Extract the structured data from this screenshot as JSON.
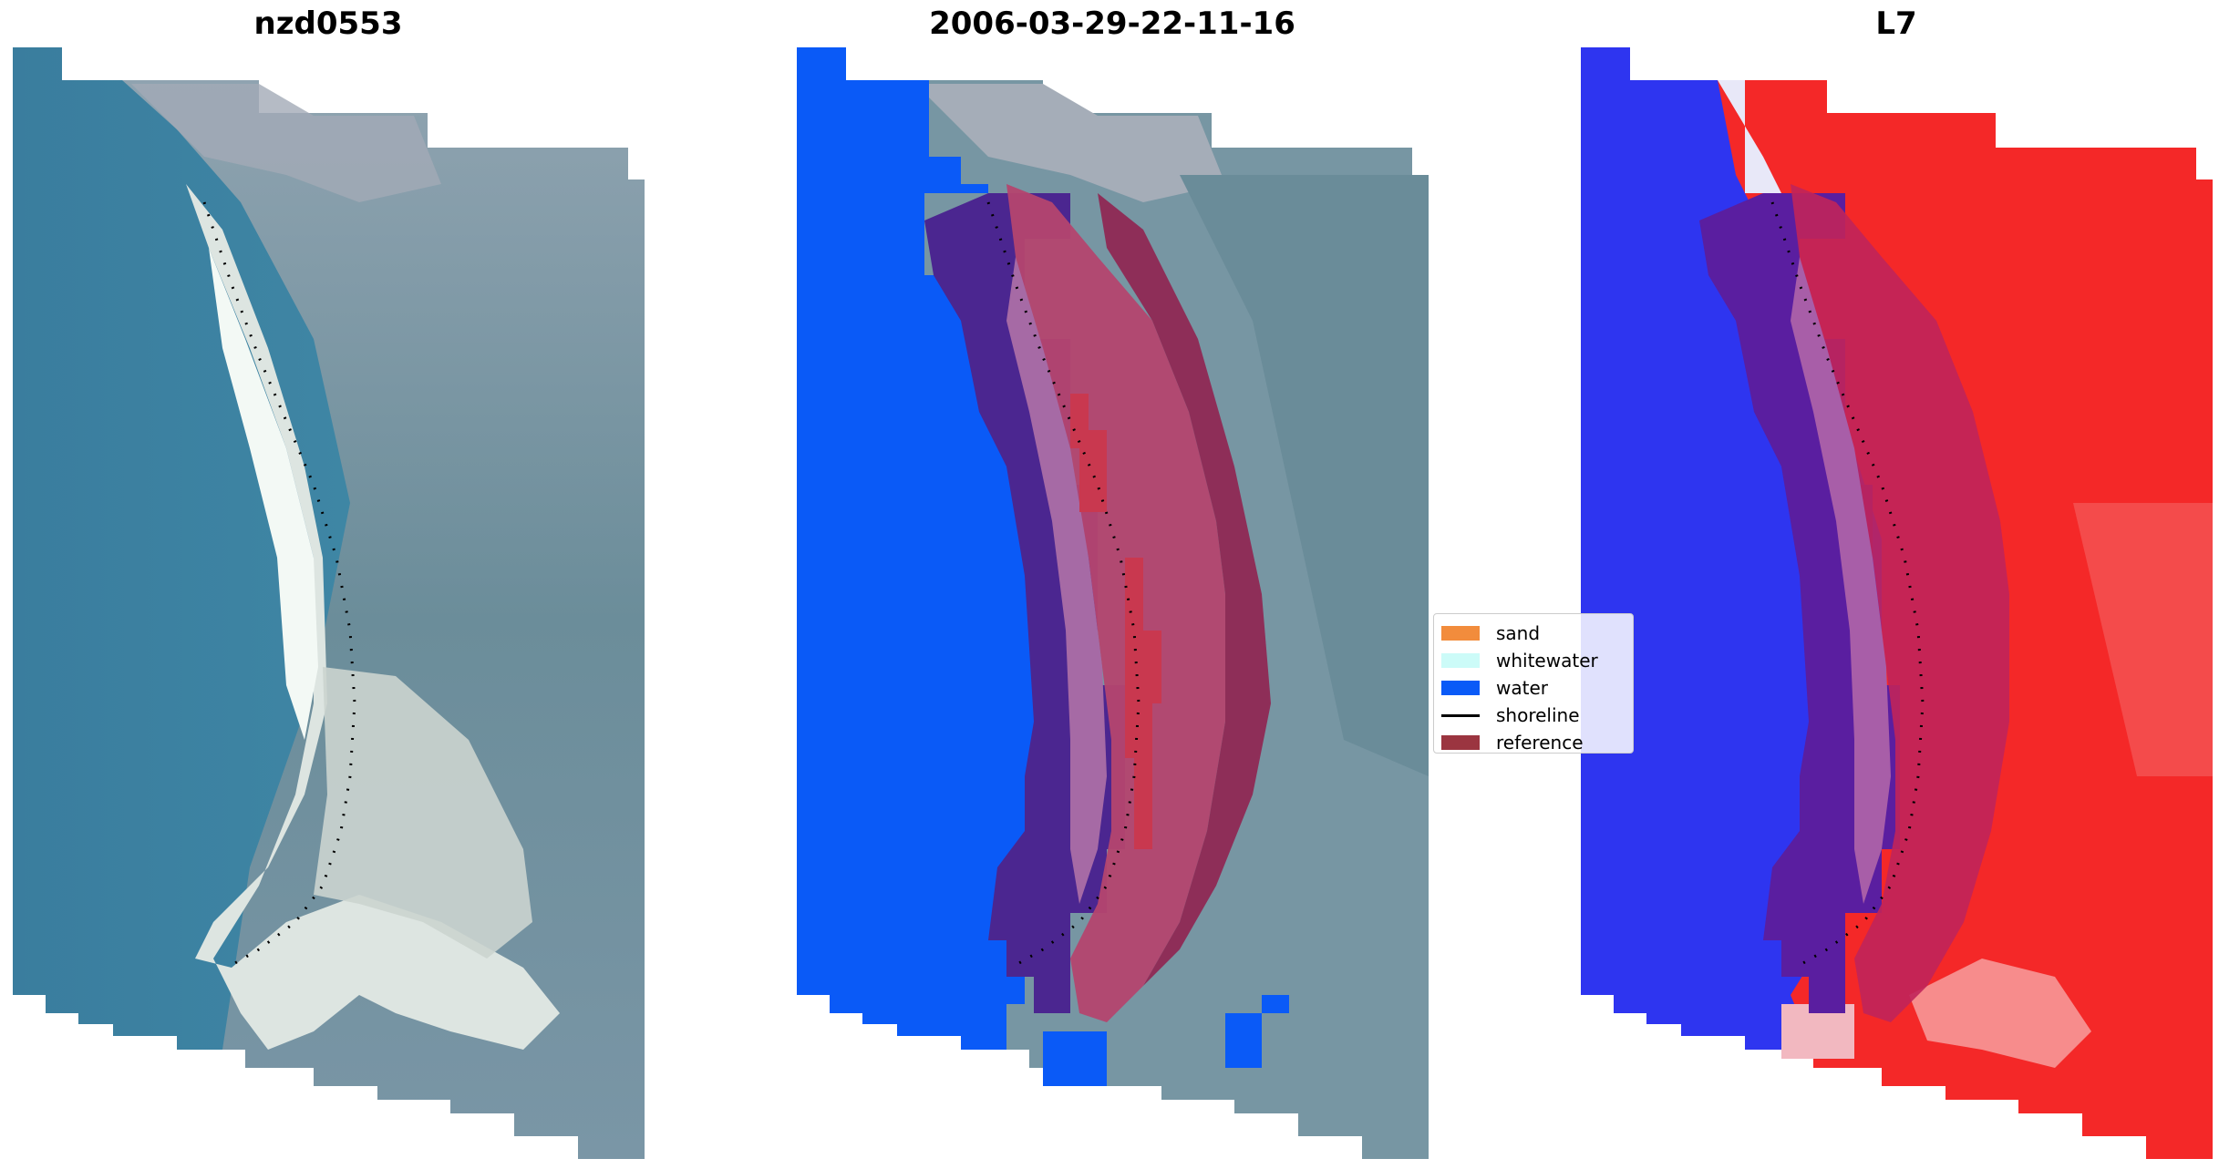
{
  "panels": [
    {
      "title": "nzd0553"
    },
    {
      "title": "2006-03-29-22-11-16"
    },
    {
      "title": "L7"
    }
  ],
  "legend": {
    "items": [
      {
        "label": "sand",
        "color": "#f28c3c",
        "kind": "patch"
      },
      {
        "label": "whitewater",
        "color": "#ccfbf8",
        "kind": "patch"
      },
      {
        "label": "water",
        "color": "#0a5af7",
        "kind": "patch"
      },
      {
        "label": "shoreline",
        "color": "#000000",
        "kind": "line"
      },
      {
        "label": "reference",
        "color": "#9b3540",
        "kind": "patch"
      }
    ]
  },
  "colors": {
    "ocean": "#3f86a4",
    "land": "#6f8e99",
    "beach": "#dfe7e2",
    "classified_water": "#0a5af7",
    "reference_band": "#a0335f",
    "inner_band": "#4a2a90",
    "index_negative": "#1f2cf6",
    "index_positive": "#fa2b2b"
  }
}
